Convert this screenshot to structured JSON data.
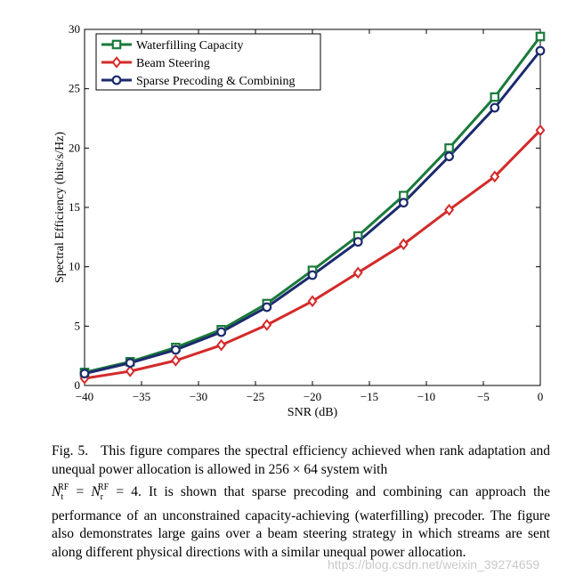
{
  "chart_data": {
    "type": "line",
    "x": [
      -40,
      -36,
      -32,
      -28,
      -24,
      -20,
      -16,
      -12,
      -8,
      -4,
      0
    ],
    "series": [
      {
        "name": "Waterfilling Capacity",
        "color": "#1a7a3a",
        "marker": "square",
        "values": [
          1.1,
          2.0,
          3.2,
          4.7,
          6.9,
          9.7,
          12.6,
          16.0,
          20.0,
          24.3,
          29.4
        ]
      },
      {
        "name": "Beam Steering",
        "color": "#d42a2a",
        "marker": "diamond",
        "values": [
          0.6,
          1.2,
          2.1,
          3.4,
          5.1,
          7.1,
          9.5,
          11.9,
          14.8,
          17.6,
          21.5
        ]
      },
      {
        "name": "Sparse Precoding & Combining",
        "color": "#1c2a6e",
        "marker": "circle",
        "values": [
          1.0,
          1.9,
          3.0,
          4.5,
          6.6,
          9.3,
          12.1,
          15.4,
          19.3,
          23.4,
          28.2
        ]
      }
    ],
    "xlabel": "SNR (dB)",
    "ylabel": "Spectral Efficiency (bits/s/Hz)",
    "xlim": [
      -40,
      0
    ],
    "ylim": [
      0,
      30
    ],
    "xticks": [
      -40,
      -35,
      -30,
      -25,
      -20,
      -15,
      -10,
      -5,
      0
    ],
    "xtick_labels": [
      "−40",
      "−35",
      "−30",
      "−25",
      "−20",
      "−15",
      "−10",
      "−5",
      "0"
    ],
    "yticks": [
      0,
      5,
      10,
      15,
      20,
      25,
      30
    ],
    "ytick_labels": [
      "0",
      "5",
      "10",
      "15",
      "20",
      "25",
      "30"
    ],
    "legend_position": "top-left",
    "grid": false
  },
  "caption": {
    "label": "Fig. 5.",
    "part1": "This figure compares the spectral efficiency achieved when rank adaptation and unequal power allocation is allowed in 256 × 64 system with",
    "n": "N",
    "sup": "RF",
    "sub_t": "t",
    "sub_r": "r",
    "eq": "=",
    "value": "= 4.",
    "part2": "It is shown that sparse precoding and combining can approach the performance of an unconstrained capacity-achieving (waterfilling) precoder. The figure also demonstrates large gains over a beam steering strategy in which streams are sent along different physical directions with a similar unequal power allocation."
  },
  "watermark": "https://blog.csdn.net/weixin_39274659"
}
